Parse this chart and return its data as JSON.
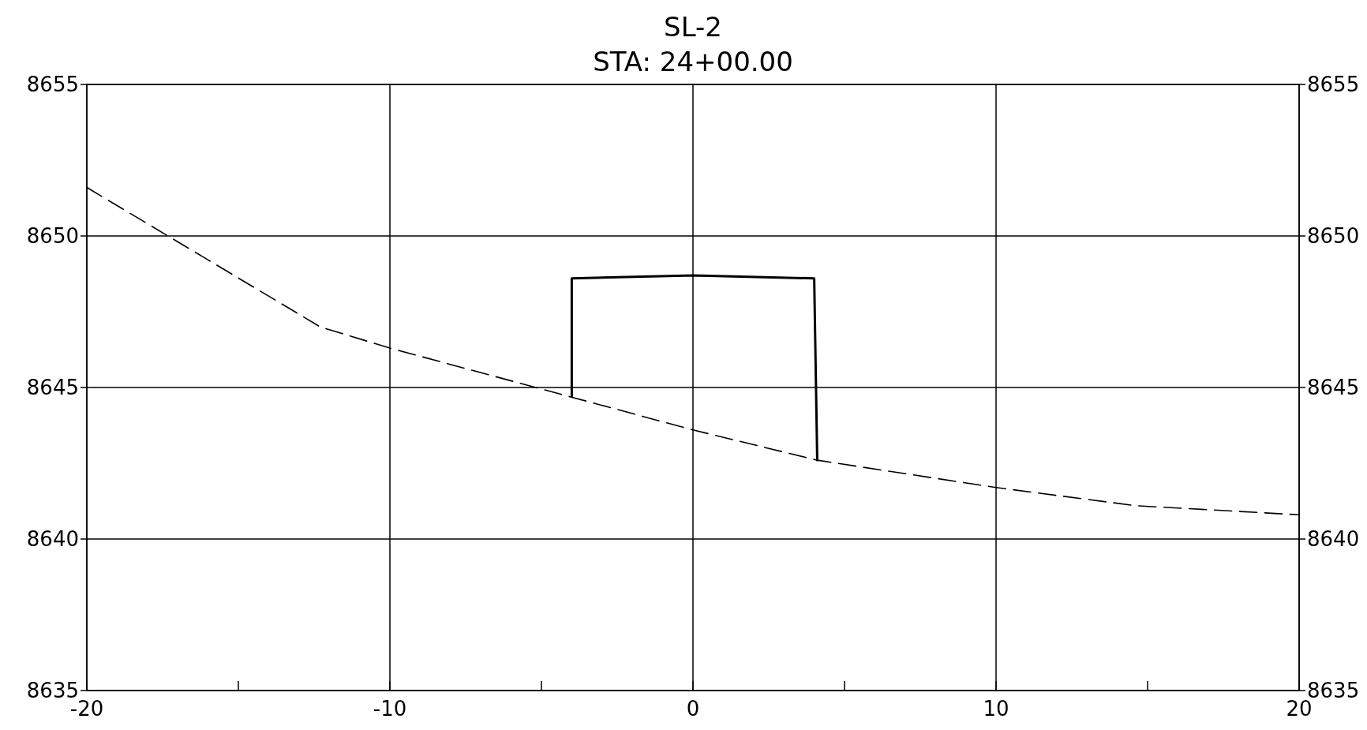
{
  "chart_data": {
    "type": "line",
    "title": "SL-2",
    "subtitle": "STA: 24+00.00",
    "xlim": [
      -20,
      20
    ],
    "xticks": [
      -20,
      {
        "value": -15,
        "label": null
      },
      -10,
      {
        "value": -5,
        "label": null
      },
      0,
      {
        "value": 5,
        "label": null
      },
      10,
      {
        "value": 15,
        "label": null
      },
      20
    ],
    "ylim": [
      8635,
      8655
    ],
    "yticks": [
      8635,
      8640,
      8645,
      8650,
      8655
    ],
    "y2lim": [
      8635,
      8655
    ],
    "y2ticks": [
      8635,
      8640,
      8645,
      8650,
      8655
    ],
    "grid": true,
    "series": [
      {
        "color": "#000000",
        "line_style": "dashed",
        "x": [
          -20,
          -12.3,
          -10,
          0,
          4.1,
          10,
          14.6,
          20
        ],
        "values": [
          8651.6,
          8647.0,
          8646.3,
          8643.6,
          8642.6,
          8641.7,
          8641.1,
          8640.8
        ]
      },
      {
        "color": "#000000",
        "line_style": "solid",
        "x": [
          -4.0,
          -4.0,
          0,
          4.0,
          4.1
        ],
        "values": [
          8644.7,
          8648.6,
          8648.7,
          8648.6,
          8642.6
        ]
      }
    ]
  }
}
